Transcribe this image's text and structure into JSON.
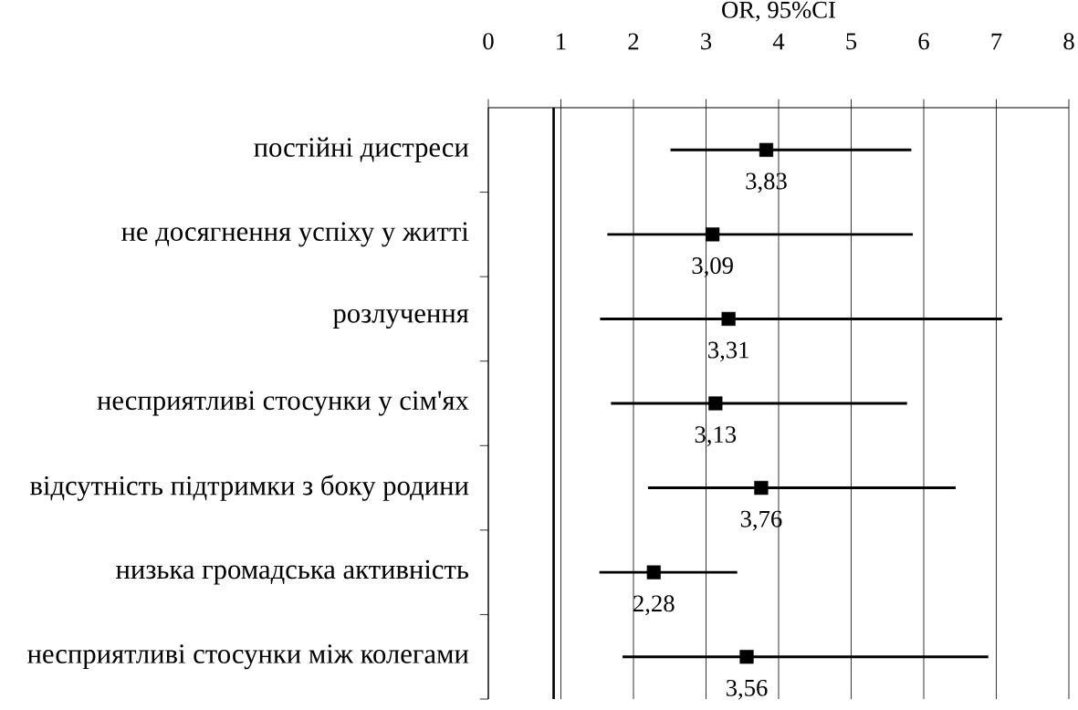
{
  "chart_data": {
    "type": "scatter",
    "orientation": "horizontal",
    "xlabel": "OR, 95%CI",
    "categories": [
      "постійні дистреси",
      "не досягнення успіху у житті",
      "розлучення",
      "несприятливі стосунки у сім'ях",
      "відсутність підтримки з боку родини",
      "низька громадська активність",
      "несприятливі стосунки між колегами"
    ],
    "values": [
      3.83,
      3.09,
      3.31,
      3.13,
      3.76,
      2.28,
      3.56
    ],
    "errors": [
      [
        2.51,
        5.83
      ],
      [
        1.64,
        5.85
      ],
      [
        1.54,
        7.08
      ],
      [
        1.69,
        5.77
      ],
      [
        2.2,
        6.44
      ],
      [
        1.53,
        3.43
      ],
      [
        1.85,
        6.89
      ]
    ],
    "value_labels": [
      "3,83",
      "3,09",
      "3,31",
      "3,13",
      "3,76",
      "2,28",
      "3,56"
    ],
    "color": "#000000",
    "marker": "square",
    "xlim": [
      0,
      8
    ],
    "xticks": [
      0,
      1,
      2,
      3,
      4,
      5,
      6,
      7,
      8
    ],
    "grid": "x",
    "ref_lines": [
      {
        "axis": "x",
        "value": 0.9
      }
    ]
  }
}
